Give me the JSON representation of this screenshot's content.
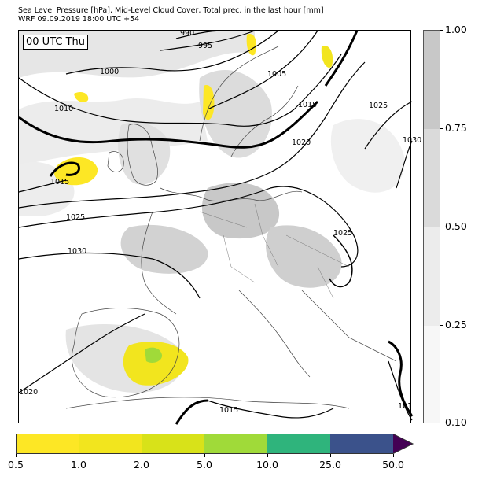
{
  "header": {
    "title_line1": "Sea Level Pressure [hPa], Mid-Level Cloud Cover, Total prec. in the last hour [mm]",
    "title_line2": "WRF 09.09.2019 18:00 UTC +54"
  },
  "map": {
    "time_label": "00 UTC Thu",
    "isobar_labels": [
      "990",
      "995",
      "1000",
      "1005",
      "1010",
      "1015",
      "1015",
      "1020",
      "1025",
      "1025",
      "1030",
      "1030",
      "1025",
      "1020",
      "1015",
      "101"
    ]
  },
  "cloud_colorbar": {
    "ticks": [
      "1.00",
      "0.75",
      "0.50",
      "0.25",
      "0.10"
    ],
    "colors": [
      "#c8c8c8",
      "#dadada",
      "#ececec",
      "#f7f7f7"
    ]
  },
  "precip_colorbar": {
    "ticks": [
      "0.5",
      "1.0",
      "2.0",
      "5.0",
      "10.0",
      "25.0",
      "50.0"
    ],
    "colors": [
      "#fde725",
      "#f2e51e",
      "#d8e219",
      "#a0da39",
      "#2fb47c",
      "#3b528b",
      "#440154"
    ]
  }
}
